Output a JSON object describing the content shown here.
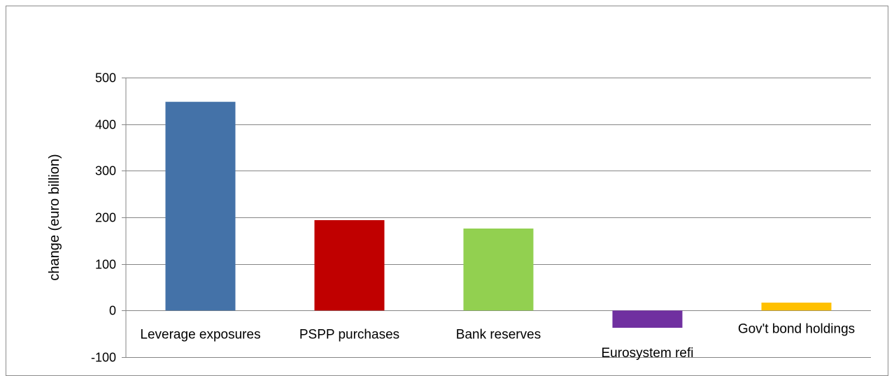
{
  "chart_data": {
    "type": "bar",
    "title": "",
    "xlabel": "",
    "ylabel": "change  (euro billion)",
    "ylim": [
      -100,
      500
    ],
    "yticks": [
      -100,
      0,
      100,
      200,
      300,
      400,
      500
    ],
    "ytick_labels": [
      "-100",
      "0",
      "100",
      "200",
      "300",
      "400",
      "500"
    ],
    "grid": true,
    "legend": "none",
    "categories": [
      "Leverage exposures",
      "PSPP purchases",
      "Bank reserves",
      "Eurosystem refi",
      "Gov't bond holdings"
    ],
    "values": [
      448,
      194,
      176,
      -37,
      17
    ],
    "colors": [
      "#4472a8",
      "#c00000",
      "#92d050",
      "#7030a0",
      "#ffc000"
    ]
  }
}
